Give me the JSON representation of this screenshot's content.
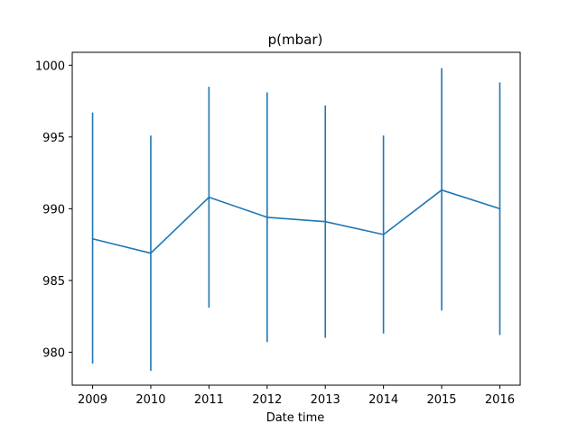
{
  "chart_data": {
    "type": "line",
    "title": "p(mbar)",
    "xlabel": "Date time",
    "ylabel": "",
    "x": [
      2009,
      2010,
      2011,
      2012,
      2013,
      2014,
      2015,
      2016
    ],
    "x_tick_labels": [
      "2009",
      "2010",
      "2011",
      "2012",
      "2013",
      "2014",
      "2015",
      "2016"
    ],
    "y_ticks": [
      980,
      985,
      990,
      995,
      1000
    ],
    "y_tick_labels": [
      "980",
      "985",
      "990",
      "995",
      "1000"
    ],
    "xlim": [
      2008.65,
      2016.35
    ],
    "ylim": [
      977.7,
      1000.9
    ],
    "grid": false,
    "series": [
      {
        "values": [
          987.9,
          986.9,
          990.8,
          989.4,
          989.1,
          988.2,
          991.3,
          990.0
        ],
        "error_low": [
          979.2,
          978.7,
          983.1,
          980.7,
          981.0,
          981.3,
          982.9,
          981.2
        ],
        "error_high": [
          996.7,
          995.1,
          998.5,
          998.1,
          997.2,
          995.1,
          999.8,
          998.8
        ],
        "color": "#1f77b4"
      }
    ]
  }
}
